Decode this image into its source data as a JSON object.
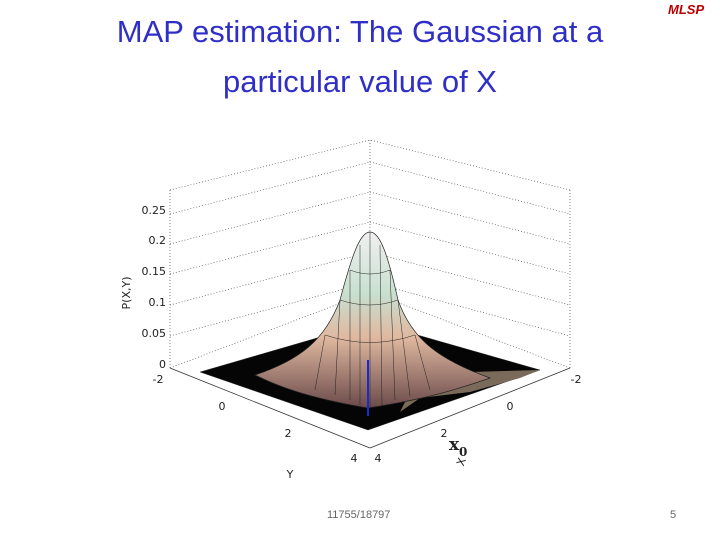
{
  "header": {
    "title_lines": [
      "MAP estimation: The Gaussian at a",
      "particular value of X"
    ],
    "logo": "MLSP"
  },
  "plot": {
    "zticks": [
      "0.25",
      "0.2",
      "0.15",
      "0.1",
      "0.05",
      "0"
    ],
    "yticks": [
      "-2",
      "0",
      "2",
      "4"
    ],
    "xticks": [
      "4",
      "2",
      "0",
      "-2"
    ],
    "zlabel": "P(X,Y)",
    "ylabel": "Y",
    "xlabel": "X",
    "annotation": {
      "main": "x",
      "sub": "0"
    }
  },
  "footer": {
    "course": "11755/18797",
    "page": "5"
  }
}
